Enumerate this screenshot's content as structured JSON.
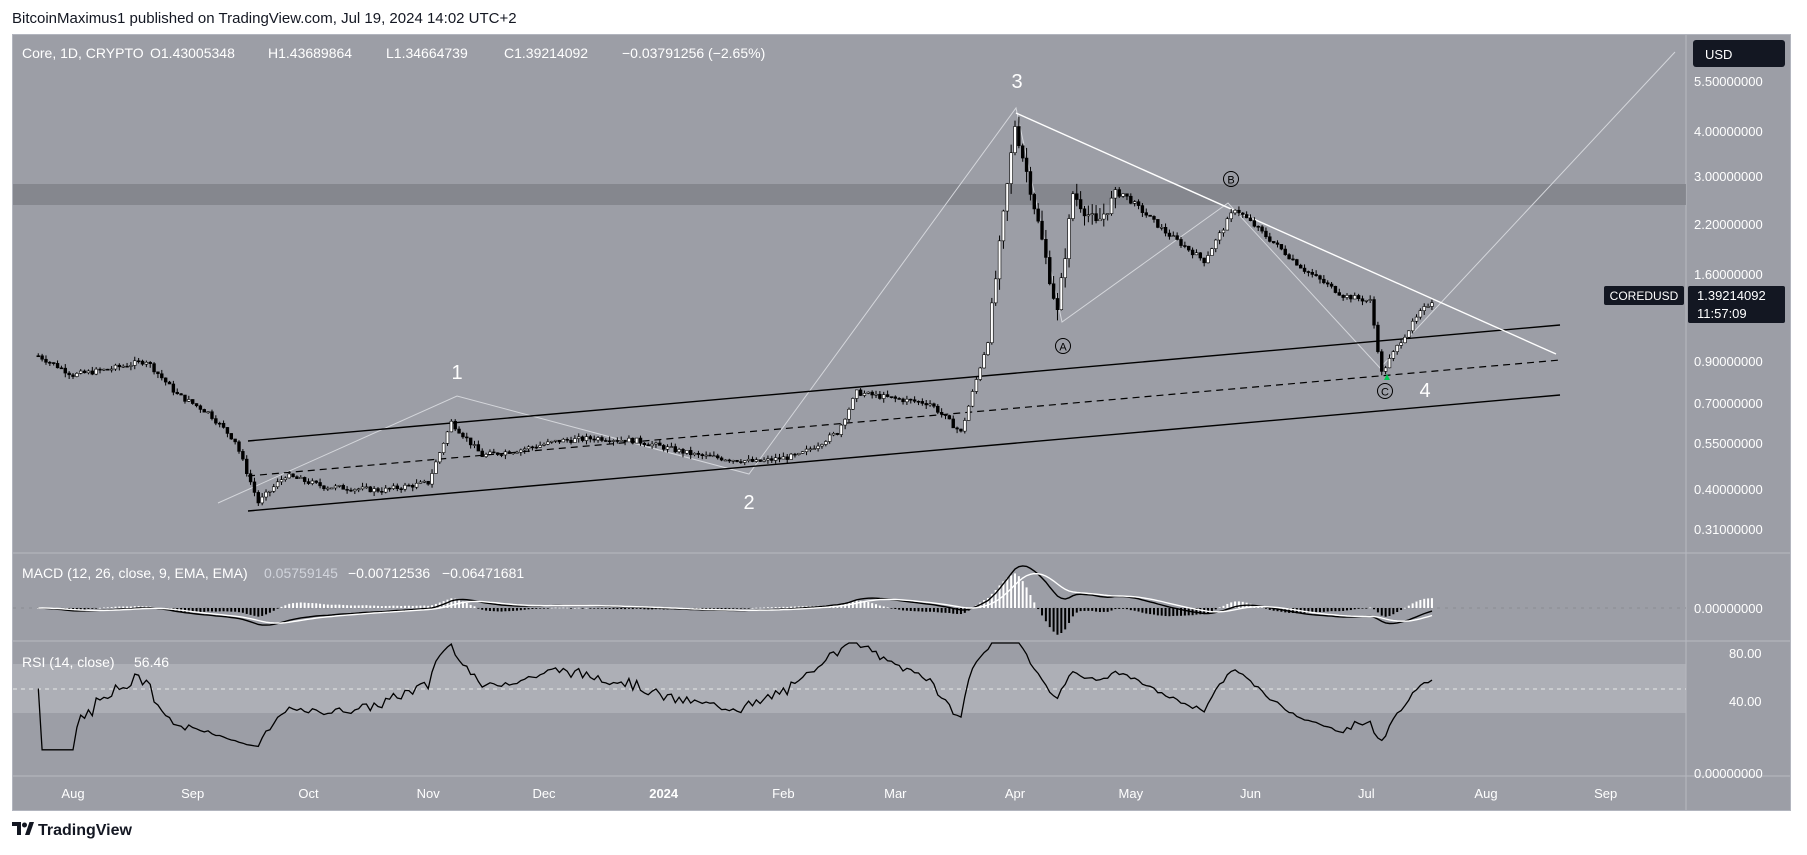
{
  "header": {
    "publisher": "BitcoinMaximus1 published on TradingView.com, Jul 19, 2024 14:02 UTC+2"
  },
  "legend": {
    "symbol": "Core, 1D, CRYPTO",
    "open": "O1.43005348",
    "high": "H1.43689864",
    "low": "L1.34664739",
    "close": "C1.39214092",
    "change": "−0.03791256 (−2.65%)"
  },
  "currency_button": "USD",
  "price_tag": {
    "symbol": "COREDUSD",
    "price": "1.39214092",
    "countdown": "11:57:09"
  },
  "price_axis": [
    "5.50000000",
    "4.00000000",
    "3.00000000",
    "2.20000000",
    "1.60000000",
    "0.90000000",
    "0.70000000",
    "0.55000000",
    "0.40000000",
    "0.31000000"
  ],
  "macd": {
    "label": "MACD (12, 26, close, 9, EMA, EMA)",
    "v1": "0.05759145",
    "v2": "−0.00712536",
    "v3": "−0.06471681",
    "axis": "0.00000000"
  },
  "rsi": {
    "label": "RSI (14, close)",
    "value": "56.46",
    "axis": [
      "80.00",
      "40.00",
      "0.00000000"
    ]
  },
  "time_axis": [
    "Aug",
    "Sep",
    "Oct",
    "Nov",
    "Dec",
    "2024",
    "Feb",
    "Mar",
    "Apr",
    "May",
    "Jun",
    "Jul",
    "Aug",
    "Sep"
  ],
  "wave_labels": [
    "1",
    "2",
    "3",
    "4"
  ],
  "abc_labels": [
    "A",
    "B",
    "C"
  ],
  "footer": {
    "brand": "TradingView"
  },
  "colors": {
    "background": "#9c9ea6",
    "candle": "#000000",
    "trendline": "#ffffff",
    "up_marker": "#00c853"
  },
  "chart_data": {
    "type": "candlestick",
    "symbol": "COREDUSD",
    "timeframe": "1D",
    "scale": "log",
    "x_range": [
      "Jul 2023",
      "Sep 2024"
    ],
    "price_path": [
      [
        "Jul 23, 2023",
        0.95
      ],
      [
        "Aug 1, 2023",
        0.84
      ],
      [
        "Aug 10, 2023",
        0.87
      ],
      [
        "Aug 20, 2023",
        0.92
      ],
      [
        "Aug 28, 2023",
        0.74
      ],
      [
        "Sep 5, 2023",
        0.66
      ],
      [
        "Sep 12, 2023",
        0.55
      ],
      [
        "Sep 18, 2023",
        0.37
      ],
      [
        "Sep 25, 2023",
        0.44
      ],
      [
        "Oct 5, 2023",
        0.41
      ],
      [
        "Oct 20, 2023",
        0.4
      ],
      [
        "Nov 1, 2023",
        0.42
      ],
      [
        "Nov 7, 2023",
        0.62
      ],
      [
        "Nov 15, 2023",
        0.5
      ],
      [
        "Nov 25, 2023",
        0.52
      ],
      [
        "Dec 5, 2023",
        0.55
      ],
      [
        "Dec 15, 2023",
        0.56
      ],
      [
        "Dec 25, 2023",
        0.55
      ],
      [
        "Jan 10, 2024",
        0.5
      ],
      [
        "Jan 25, 2024",
        0.48
      ],
      [
        "Feb 5, 2024",
        0.5
      ],
      [
        "Feb 15, 2024",
        0.58
      ],
      [
        "Feb 20, 2024",
        0.75
      ],
      [
        "Mar 1, 2024",
        0.72
      ],
      [
        "Mar 10, 2024",
        0.7
      ],
      [
        "Mar 18, 2024",
        0.58
      ],
      [
        "Mar 25, 2024",
        1.05
      ],
      [
        "Apr 1, 2024",
        4.2
      ],
      [
        "Apr 5, 2024",
        2.8
      ],
      [
        "Apr 12, 2024",
        1.25
      ],
      [
        "Apr 16, 2024",
        2.7
      ],
      [
        "Apr 22, 2024",
        2.2
      ],
      [
        "Apr 28, 2024",
        2.75
      ],
      [
        "May 10, 2024",
        2.1
      ],
      [
        "May 20, 2024",
        1.75
      ],
      [
        "May 28, 2024",
        2.45
      ],
      [
        "Jun 5, 2024",
        2.05
      ],
      [
        "Jun 15, 2024",
        1.65
      ],
      [
        "Jun 25, 2024",
        1.4
      ],
      [
        "Jul 2, 2024",
        1.35
      ],
      [
        "Jul 5, 2024",
        0.85
      ],
      [
        "Jul 10, 2024",
        1.05
      ],
      [
        "Jul 15, 2024",
        1.25
      ],
      [
        "Jul 19, 2024",
        1.39
      ]
    ],
    "last": {
      "open": 1.43005348,
      "high": 1.43689864,
      "low": 1.34664739,
      "close": 1.39214092,
      "change": -0.03791256,
      "change_pct": -2.65
    },
    "indicators": {
      "macd": {
        "params": "12, 26, close, 9, EMA, EMA",
        "values": [
          0.05759145,
          -0.00712536,
          -0.06471681
        ]
      },
      "rsi": {
        "params": "14, close",
        "value": 56.46,
        "bands": [
          30,
          70
        ]
      }
    }
  }
}
